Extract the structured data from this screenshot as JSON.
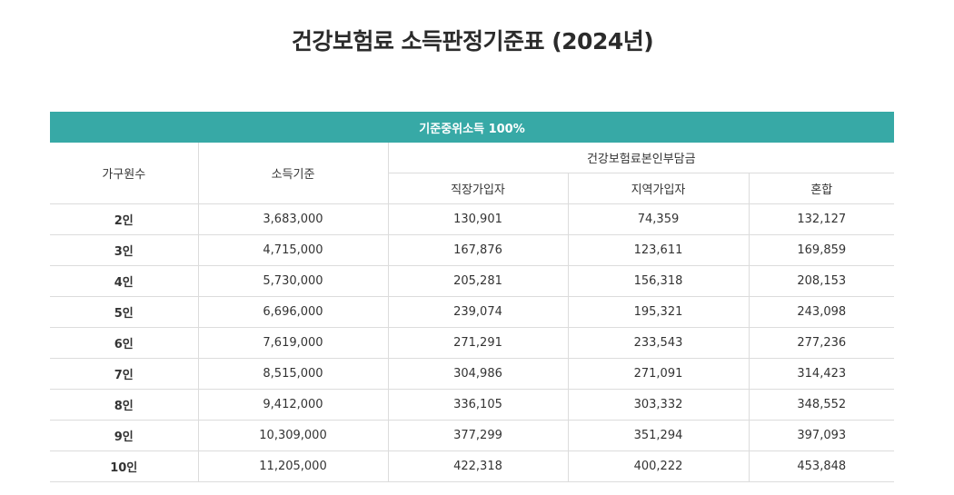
{
  "title": "건강보험료 소득판정기준표 (2024년)",
  "table": {
    "banner": "기준중위소득 100%",
    "headers": {
      "household": "가구원수",
      "income_standard": "소득기준",
      "premium_group": "건강보험료본인부담금",
      "employee": "직장가입자",
      "regional": "지역가입자",
      "mixed": "혼합"
    },
    "rows": [
      [
        "2인",
        "3,683,000",
        "130,901",
        "74,359",
        "132,127"
      ],
      [
        "3인",
        "4,715,000",
        "167,876",
        "123,611",
        "169,859"
      ],
      [
        "4인",
        "5,730,000",
        "205,281",
        "156,318",
        "208,153"
      ],
      [
        "5인",
        "6,696,000",
        "239,074",
        "195,321",
        "243,098"
      ],
      [
        "6인",
        "7,619,000",
        "271,291",
        "233,543",
        "277,236"
      ],
      [
        "7인",
        "8,515,000",
        "304,986",
        "271,091",
        "314,423"
      ],
      [
        "8인",
        "9,412,000",
        "336,105",
        "303,332",
        "348,552"
      ],
      [
        "9인",
        "10,309,000",
        "377,299",
        "351,294",
        "397,093"
      ],
      [
        "10인",
        "11,205,000",
        "422,318",
        "400,222",
        "453,848"
      ]
    ]
  }
}
